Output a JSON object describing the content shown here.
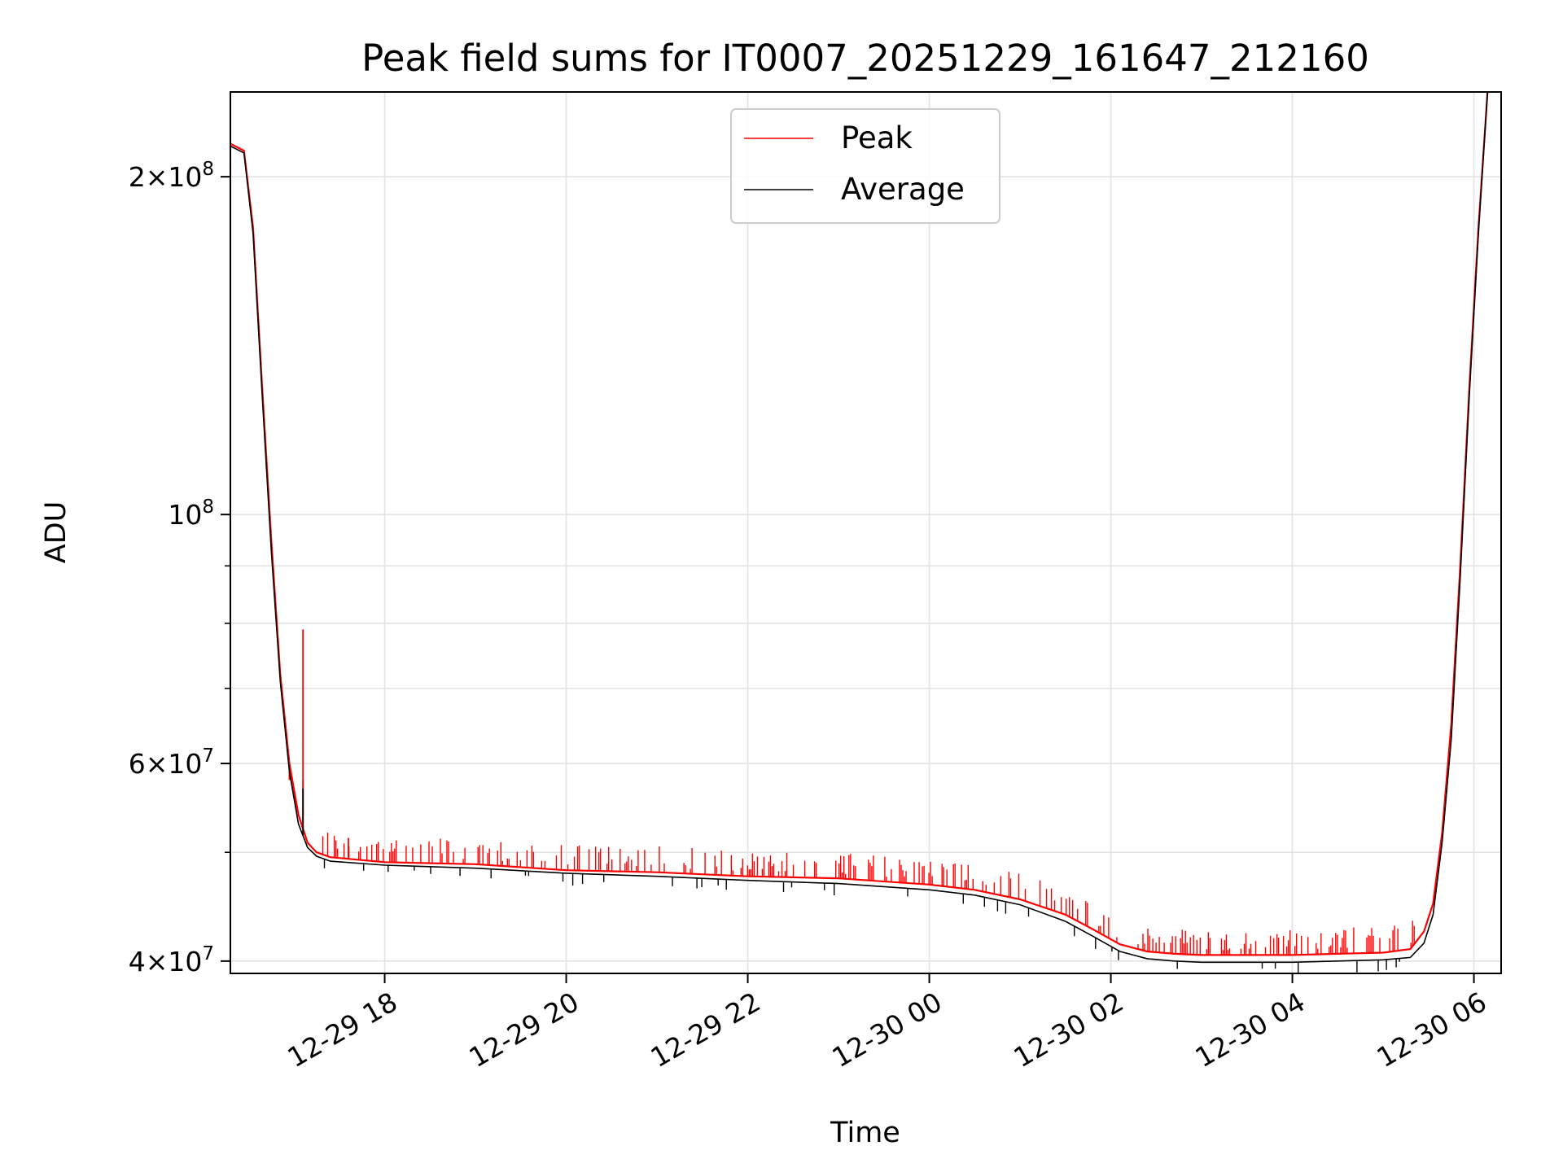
{
  "chart_data": {
    "type": "line",
    "title": "Peak field sums for IT0007_20251229_161647_212160",
    "xlabel": "Time",
    "ylabel": "ADU",
    "yscale": "log",
    "xlim": [
      16.3,
      30.3
    ],
    "ylim": [
      39000000,
      238000000
    ],
    "grid": true,
    "legend_position": "upper center",
    "x_units": "hours since 2025-12-29 00:00",
    "x_ticks": [
      {
        "value": 18,
        "label": "12-29 18"
      },
      {
        "value": 20,
        "label": "12-29 20"
      },
      {
        "value": 22,
        "label": "12-29 22"
      },
      {
        "value": 24,
        "label": "12-30 00"
      },
      {
        "value": 26,
        "label": "12-30 02"
      },
      {
        "value": 28,
        "label": "12-30 04"
      },
      {
        "value": 30,
        "label": "12-30 06"
      }
    ],
    "y_major_ticks": [
      {
        "value": 40000000,
        "base": "4×10",
        "exp": "7"
      },
      {
        "value": 60000000,
        "base": "6×10",
        "exp": "7"
      },
      {
        "value": 100000000,
        "base": "10",
        "exp": "8"
      },
      {
        "value": 200000000,
        "base": "2×10",
        "exp": "8"
      }
    ],
    "y_minor_gridlines": [
      50000000,
      70000000,
      80000000,
      90000000
    ],
    "series": [
      {
        "name": "Peak",
        "color": "#ff0000",
        "points": [
          [
            16.3,
            214000000
          ],
          [
            16.45,
            211000000
          ],
          [
            16.55,
            180000000
          ],
          [
            16.65,
            130000000
          ],
          [
            16.75,
            95000000
          ],
          [
            16.85,
            72000000
          ],
          [
            16.95,
            60000000
          ],
          [
            17.05,
            54000000
          ],
          [
            17.15,
            51000000
          ],
          [
            17.25,
            50000000
          ],
          [
            17.4,
            49500000
          ],
          [
            18,
            49000000
          ],
          [
            19,
            48800000
          ],
          [
            20,
            48200000
          ],
          [
            21,
            48000000
          ],
          [
            22,
            47600000
          ],
          [
            23,
            47400000
          ],
          [
            24,
            46800000
          ],
          [
            24.5,
            46300000
          ],
          [
            25,
            45400000
          ],
          [
            25.5,
            44000000
          ],
          [
            25.8,
            42700000
          ],
          [
            26.1,
            41400000
          ],
          [
            26.4,
            40800000
          ],
          [
            26.7,
            40600000
          ],
          [
            27,
            40500000
          ],
          [
            28,
            40500000
          ],
          [
            28.5,
            40600000
          ],
          [
            29,
            40700000
          ],
          [
            29.3,
            41000000
          ],
          [
            29.45,
            42500000
          ],
          [
            29.55,
            45000000
          ],
          [
            29.65,
            52000000
          ],
          [
            29.75,
            65000000
          ],
          [
            29.85,
            90000000
          ],
          [
            29.95,
            130000000
          ],
          [
            30.05,
            180000000
          ],
          [
            30.15,
            238000000
          ]
        ],
        "spikes": [
          [
            17.1,
            79000000
          ],
          [
            17.1,
            58000000
          ],
          [
            16.95,
            58000000
          ],
          [
            17.6,
            51500000
          ]
        ]
      },
      {
        "name": "Average",
        "color": "#000000",
        "points": [
          [
            16.3,
            213000000
          ],
          [
            16.45,
            210000000
          ],
          [
            16.55,
            178000000
          ],
          [
            16.65,
            128000000
          ],
          [
            16.75,
            93000000
          ],
          [
            16.85,
            71000000
          ],
          [
            16.95,
            59000000
          ],
          [
            17.05,
            53000000
          ],
          [
            17.15,
            50500000
          ],
          [
            17.25,
            49600000
          ],
          [
            17.4,
            49100000
          ],
          [
            18,
            48700000
          ],
          [
            19,
            48400000
          ],
          [
            20,
            47900000
          ],
          [
            21,
            47600000
          ],
          [
            22,
            47200000
          ],
          [
            23,
            46900000
          ],
          [
            24,
            46300000
          ],
          [
            24.5,
            45800000
          ],
          [
            25,
            44900000
          ],
          [
            25.5,
            43400000
          ],
          [
            25.8,
            42100000
          ],
          [
            26.1,
            40800000
          ],
          [
            26.4,
            40200000
          ],
          [
            26.7,
            40000000
          ],
          [
            27,
            39900000
          ],
          [
            28,
            39900000
          ],
          [
            28.5,
            40000000
          ],
          [
            29,
            40100000
          ],
          [
            29.3,
            40300000
          ],
          [
            29.45,
            41500000
          ],
          [
            29.55,
            44000000
          ],
          [
            29.65,
            51000000
          ],
          [
            29.75,
            63000000
          ],
          [
            29.85,
            88000000
          ],
          [
            29.95,
            128000000
          ],
          [
            30.05,
            178000000
          ],
          [
            30.15,
            238000000
          ]
        ],
        "spikes": [
          [
            17.1,
            57000000
          ]
        ]
      }
    ]
  }
}
